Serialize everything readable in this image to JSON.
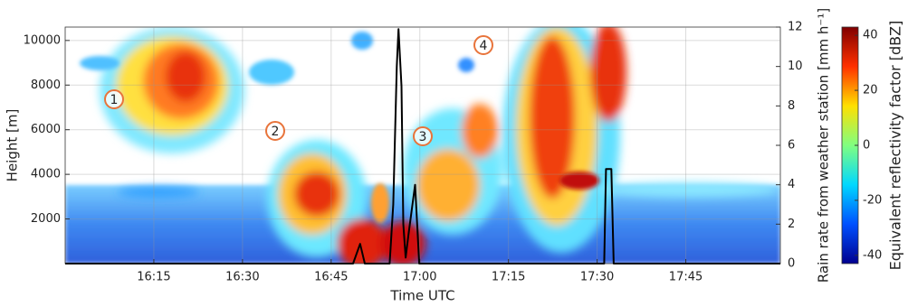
{
  "chart_data": {
    "type": "line",
    "xlabel": "Time UTC",
    "ylabel": "Height [m]",
    "y2label": "Rain rate from weather station [mm h⁻¹]",
    "xlim": [
      960,
      1081
    ],
    "xticks": [
      {
        "value": 975,
        "label": "16:15"
      },
      {
        "value": 990,
        "label": "16:30"
      },
      {
        "value": 1005,
        "label": "16:45"
      },
      {
        "value": 1020,
        "label": "17:00"
      },
      {
        "value": 1035,
        "label": "17:15"
      },
      {
        "value": 1050,
        "label": "17:30"
      },
      {
        "value": 1065,
        "label": "17:45"
      }
    ],
    "ylim": [
      0,
      10600
    ],
    "yticks": [
      2000,
      4000,
      6000,
      8000,
      10000
    ],
    "y2lim": [
      0,
      12
    ],
    "y2ticks": [
      0,
      2,
      4,
      6,
      8,
      10,
      12
    ],
    "grid": true,
    "x": [
      960,
      1008.7,
      1009.3,
      1009.9,
      1010.7,
      1014.9,
      1015.5,
      1016.1,
      1016.4,
      1016.9,
      1017.2,
      1017.6,
      1018.1,
      1019.2,
      1019.9,
      1051.2,
      1051.5,
      1052.4,
      1052.8,
      1081
    ],
    "series": [
      {
        "axis": "y2",
        "color": "#000000",
        "values": [
          0,
          0,
          0.5,
          1.0,
          0,
          0,
          3,
          10,
          11.9,
          9,
          2,
          0.3,
          1.5,
          4.0,
          0,
          0,
          4.8,
          4.8,
          0,
          0
        ]
      }
    ],
    "annotations": [
      "1",
      "2",
      "3",
      "4"
    ],
    "colorbar": {
      "label": "Equivalent reflectivity factor [dBZ]",
      "lim": [
        -43,
        43
      ],
      "ticks": [
        -40,
        -20,
        0,
        20,
        40
      ],
      "colormap": [
        "#00008f",
        "#0050ff",
        "#00d8ff",
        "#80ff80",
        "#ffe000",
        "#ff3000",
        "#800000"
      ]
    }
  }
}
